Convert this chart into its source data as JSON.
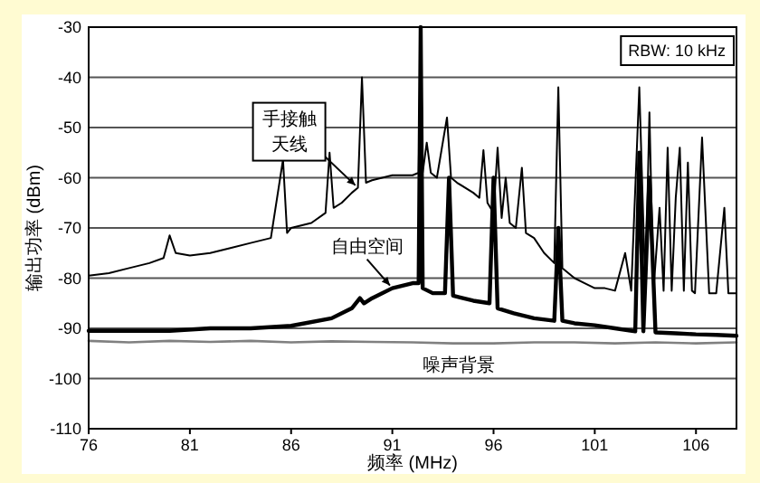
{
  "chart_data": {
    "type": "line",
    "xlabel": "频率 (MHz)",
    "ylabel": "输出功率 (dBm)",
    "xlim": [
      76,
      108
    ],
    "xticks": [
      76,
      81,
      86,
      91,
      96,
      101,
      106
    ],
    "ylim": [
      -110,
      -30
    ],
    "yticks": [
      -110,
      -100,
      -90,
      -80,
      -70,
      -60,
      -50,
      -40,
      -30
    ],
    "grid": "y",
    "line_style": "solid",
    "marker": "none",
    "series": [
      {
        "color": "#000000",
        "x": [
          76,
          77,
          78,
          79,
          79.7,
          80,
          80.3,
          81,
          82,
          83,
          84,
          85,
          85.6,
          85.8,
          86,
          86.5,
          87,
          87.7,
          87.9,
          88.1,
          88.5,
          89,
          89.3,
          89.5,
          89.7,
          90,
          90.5,
          91,
          91.5,
          92,
          92.3,
          92.4,
          92.5,
          92.7,
          92.9,
          93.2,
          93.7,
          93.9,
          94.2,
          95,
          95.3,
          95.5,
          95.7,
          96,
          96.2,
          96.4,
          96.6,
          96.8,
          97.1,
          97.4,
          97.6,
          98,
          98.5,
          99,
          99.2,
          99.4,
          100,
          100.5,
          101,
          101.5,
          102,
          102.5,
          102.8,
          103.2,
          103.5,
          103.7,
          103.9,
          104.2,
          104.4,
          104.6,
          104.8,
          105,
          105.2,
          105.4,
          105.6,
          105.8,
          105.95,
          106.3,
          106.65,
          107,
          107.4,
          107.6,
          108
        ],
        "values": [
          -79.5,
          -79,
          -78,
          -77,
          -76,
          -71.5,
          -75,
          -75.5,
          -75,
          -74,
          -73,
          -72,
          -56.4,
          -71,
          -70,
          -69.5,
          -69,
          -67,
          -55,
          -66,
          -65,
          -63,
          -62,
          -40,
          -61,
          -60.5,
          -60,
          -59.5,
          -59.5,
          -59.5,
          -59,
          -30,
          -59,
          -53,
          -59,
          -60,
          -48,
          -60,
          -61,
          -63,
          -64,
          -54.5,
          -65,
          -67,
          -54,
          -68,
          -60,
          -69,
          -70,
          -58,
          -71,
          -72,
          -75,
          -77,
          -42,
          -78,
          -80,
          -81,
          -82,
          -82,
          -82.5,
          -75,
          -82.5,
          -42,
          -82.5,
          -47,
          -82.5,
          -66,
          -82.5,
          -54,
          -82.5,
          -64,
          -54,
          -82.5,
          -57,
          -82.5,
          -83,
          -52,
          -83,
          -83,
          -66,
          -83,
          -83
        ]
      },
      {
        "color": "#000000",
        "x": [
          76,
          78,
          80,
          82,
          84,
          86,
          88,
          89,
          89.4,
          89.6,
          90,
          91,
          92,
          92.3,
          92.4,
          92.5,
          93,
          93.6,
          93.8,
          94,
          95,
          95.8,
          96,
          96.2,
          97,
          98,
          99,
          99.2,
          99.4,
          100,
          101,
          102,
          103,
          103.2,
          103.4,
          103.7,
          104,
          105,
          106,
          107,
          108
        ],
        "values": [
          -90.5,
          -90.5,
          -90.5,
          -90,
          -90,
          -89.5,
          -88,
          -86,
          -84,
          -85,
          -84,
          -82,
          -81,
          -81,
          -30,
          -82,
          -83,
          -83,
          -60,
          -83.5,
          -84.5,
          -85,
          -60,
          -86,
          -87,
          -88,
          -88.5,
          -70,
          -88.5,
          -89,
          -89.4,
          -90,
          -90.6,
          -55,
          -90.6,
          -60,
          -90.8,
          -91,
          -91.2,
          -91.3,
          -91.5
        ]
      },
      {
        "color": "#808080",
        "x": [
          76,
          78,
          80,
          82,
          84,
          86,
          88,
          90,
          92,
          94,
          96,
          98,
          100,
          102,
          104,
          106,
          108
        ],
        "values": [
          -92.5,
          -92.8,
          -92.5,
          -92.7,
          -92.5,
          -92.8,
          -92.6,
          -92.7,
          -92.8,
          -93,
          -93,
          -92.8,
          -92.8,
          -93,
          -92.8,
          -93,
          -92.8
        ]
      }
    ],
    "annotations": [
      {
        "text": "手接触天线",
        "x": 89.3,
        "y": -62
      },
      {
        "text": "自由空间",
        "x": 91,
        "y": -82
      },
      {
        "text": "噪声背景",
        "x": 95,
        "y": -93
      },
      "RBW: 10 kHz"
    ]
  }
}
